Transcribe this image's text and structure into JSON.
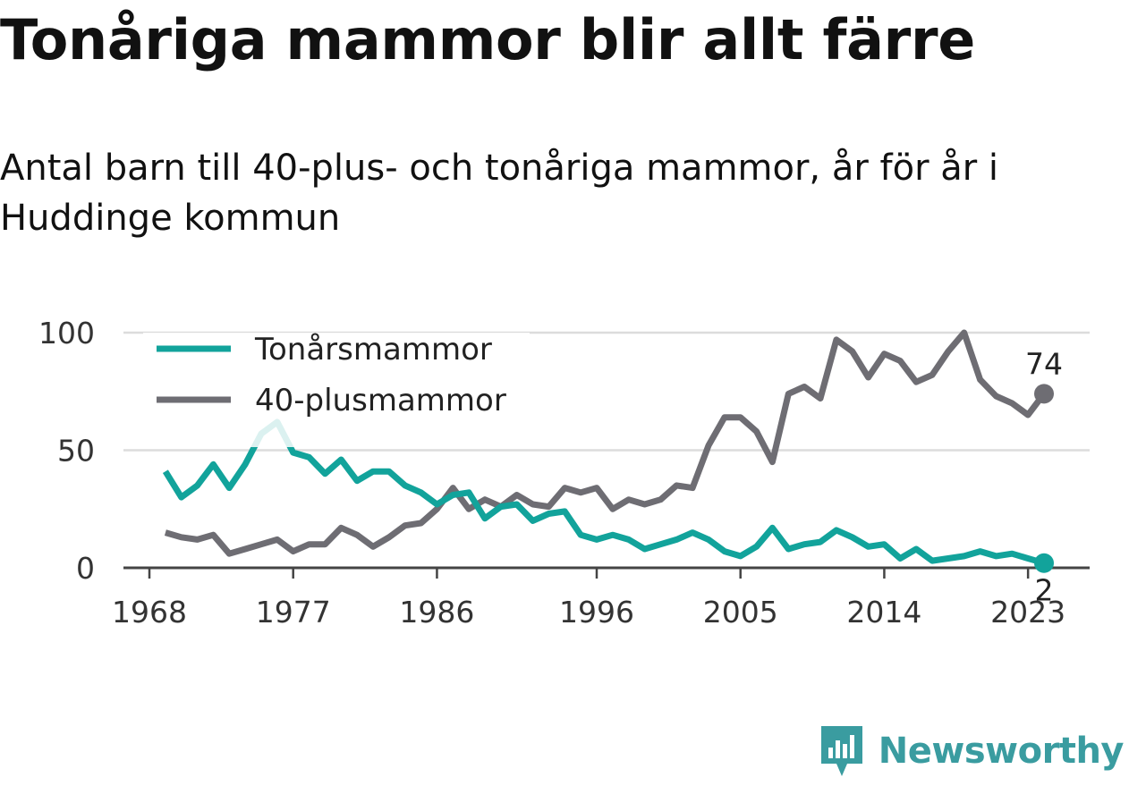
{
  "title": "Tonåriga mammor blir allt färre",
  "subtitle": "Antal barn till 40-plus- och tonåriga mammor, år för år i Huddinge kommun",
  "brand": {
    "name": "Newsworthy",
    "icon": "newsworthy-logo-icon"
  },
  "chart_data": {
    "type": "line",
    "title": "Tonåriga mammor blir allt färre",
    "subtitle": "Antal barn till 40-plus- och tonåriga mammor, år för år i Huddinge kommun",
    "xlabel": "",
    "ylabel": "",
    "xlim": [
      1968,
      2024
    ],
    "ylim": [
      0,
      100
    ],
    "x_ticks": [
      "1968",
      "1977",
      "1986",
      "1996",
      "2005",
      "2014",
      "2023"
    ],
    "y_ticks": [
      "0",
      "50",
      "100"
    ],
    "grid": true,
    "legend_position": "top-left",
    "x": [
      1969,
      1970,
      1971,
      1972,
      1973,
      1974,
      1975,
      1976,
      1977,
      1978,
      1979,
      1980,
      1981,
      1982,
      1983,
      1984,
      1985,
      1986,
      1987,
      1988,
      1989,
      1990,
      1991,
      1992,
      1993,
      1994,
      1995,
      1996,
      1997,
      1998,
      1999,
      2000,
      2001,
      2002,
      2003,
      2004,
      2005,
      2006,
      2007,
      2008,
      2009,
      2010,
      2011,
      2012,
      2013,
      2014,
      2015,
      2016,
      2017,
      2018,
      2019,
      2020,
      2021,
      2022,
      2023,
      2024
    ],
    "series": [
      {
        "name": "Tonårsmammor",
        "color": "#12a39b",
        "values": [
          41,
          30,
          35,
          44,
          34,
          44,
          57,
          62,
          49,
          47,
          40,
          46,
          37,
          41,
          41,
          35,
          32,
          27,
          31,
          32,
          21,
          26,
          27,
          20,
          23,
          24,
          14,
          12,
          14,
          12,
          8,
          10,
          12,
          15,
          12,
          7,
          5,
          9,
          17,
          8,
          10,
          11,
          16,
          13,
          9,
          10,
          4,
          8,
          3,
          4,
          5,
          7,
          5,
          6,
          4,
          2
        ],
        "end_label": "2"
      },
      {
        "name": "40-plusmammor",
        "color": "#6e6d73",
        "values": [
          15,
          13,
          12,
          14,
          6,
          8,
          10,
          12,
          7,
          10,
          10,
          17,
          14,
          9,
          13,
          18,
          19,
          25,
          34,
          25,
          29,
          26,
          31,
          27,
          26,
          34,
          32,
          34,
          25,
          29,
          27,
          29,
          35,
          34,
          52,
          64,
          64,
          58,
          45,
          74,
          77,
          72,
          97,
          92,
          81,
          91,
          88,
          79,
          82,
          92,
          100,
          80,
          73,
          70,
          65,
          74
        ],
        "end_label": "74"
      }
    ]
  }
}
